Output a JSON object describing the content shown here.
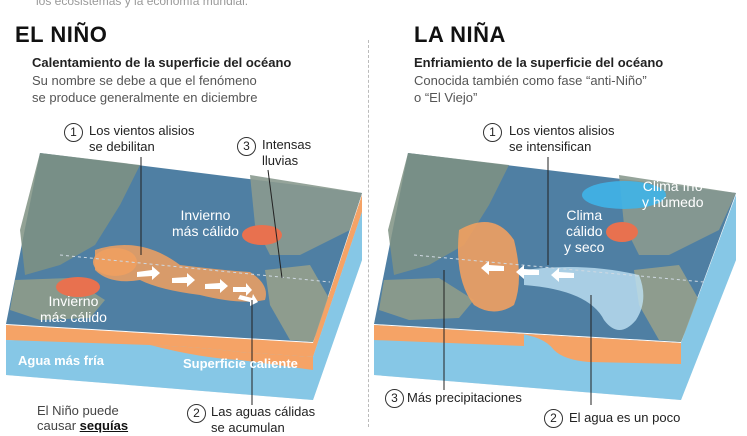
{
  "top_cut": "los ecosistemas y la economía mundial.",
  "el_nino": {
    "title": "EL NIÑO",
    "subtitle": "Calentamiento de la superficie del océano",
    "desc_line1": "Su nombre se debe a que el fenómeno",
    "desc_line2": "se produce generalmente en diciembre",
    "c1_num": "1",
    "c1_line1": "Los vientos alisios",
    "c1_line2": "se debilitan",
    "c3_num": "3",
    "c3_line1": "Intensas",
    "c3_line2": "lluvias",
    "winter_n_1": "Invierno",
    "winter_n_2": "más cálido",
    "winter_s_1": "Invierno",
    "winter_s_2": "más cálido",
    "cold_water": "Agua más fría",
    "warm_surface": "Superficie caliente",
    "c2_num": "2",
    "c2_line1": "Las aguas cálidas",
    "c2_line2": "se acumulan",
    "foot_1": "El Niño puede",
    "foot_2a": "causar ",
    "foot_2b": "sequías"
  },
  "la_nina": {
    "title": "LA NIÑA",
    "subtitle": "Enfriamiento de la superficie del océano",
    "desc_line1": "Conocida también como fase “anti-Niño”",
    "desc_line2": "o “El Viejo”",
    "c1_num": "1",
    "c1_line1": "Los vientos alisios",
    "c1_line2": "se intensifican",
    "cold_humid_1": "Clima frío",
    "cold_humid_2": "y húmedo",
    "warm_dry_1": "Clima",
    "warm_dry_2": "cálido",
    "warm_dry_3": "y seco",
    "c3_num": "3",
    "c3_text": "Más precipitaciones",
    "c2_num": "2",
    "c2_text": "El agua es un poco"
  },
  "colors": {
    "ocean": "#4f7fa3",
    "land": "#8a9a8f",
    "warm": "#f0a060",
    "cold_layer": "#86c7e6",
    "warm_layer": "#f5a366",
    "hot_spot": "#e8714f",
    "cool_blob": "#3fb4e8"
  }
}
